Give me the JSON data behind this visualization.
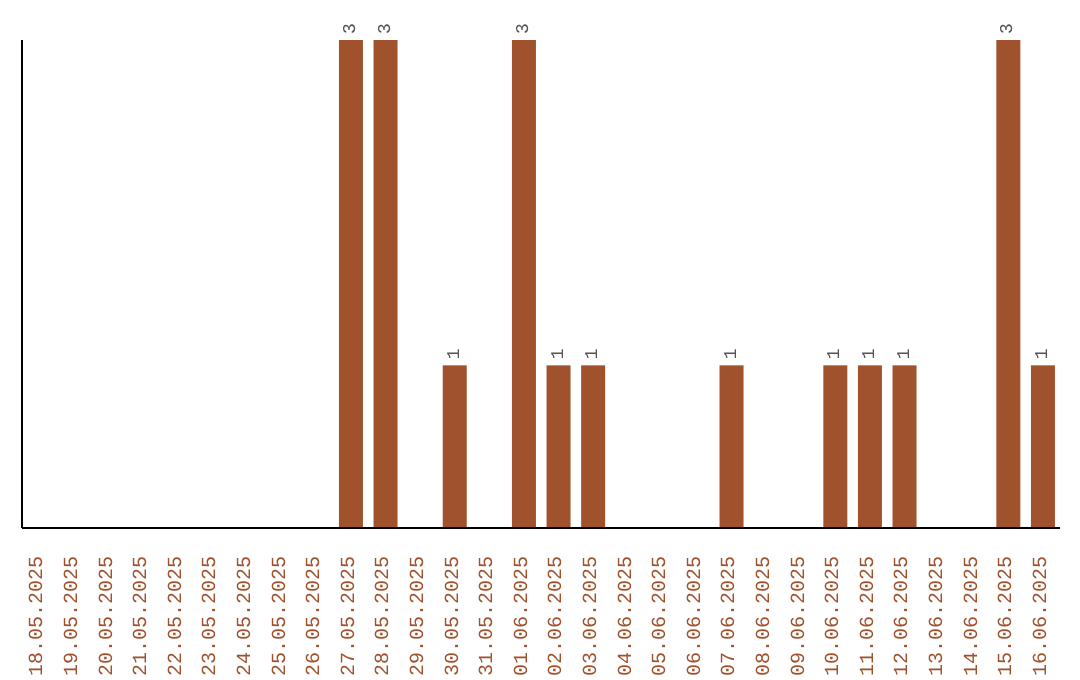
{
  "chart_data": {
    "type": "bar",
    "categories": [
      "18.05.2025",
      "19.05.2025",
      "20.05.2025",
      "21.05.2025",
      "22.05.2025",
      "23.05.2025",
      "24.05.2025",
      "25.05.2025",
      "26.05.2025",
      "27.05.2025",
      "28.05.2025",
      "29.05.2025",
      "30.05.2025",
      "31.05.2025",
      "01.06.2025",
      "02.06.2025",
      "03.06.2025",
      "04.06.2025",
      "05.06.2025",
      "06.06.2025",
      "07.06.2025",
      "08.06.2025",
      "09.06.2025",
      "10.06.2025",
      "11.06.2025",
      "12.06.2025",
      "13.06.2025",
      "14.06.2025",
      "15.06.2025",
      "16.06.2025"
    ],
    "values": [
      0,
      0,
      0,
      0,
      0,
      0,
      0,
      0,
      0,
      3,
      3,
      0,
      1,
      0,
      3,
      1,
      1,
      0,
      0,
      0,
      1,
      0,
      0,
      1,
      1,
      1,
      0,
      0,
      3,
      1
    ],
    "value_labels": [
      null,
      null,
      null,
      null,
      null,
      null,
      null,
      null,
      null,
      "3",
      "3",
      null,
      "1",
      null,
      "3",
      "1",
      "1",
      null,
      null,
      null,
      "1",
      null,
      null,
      "1",
      "1",
      "1",
      null,
      null,
      "3",
      "1"
    ],
    "color": "#a0522d",
    "ylim": [
      0,
      3
    ],
    "tick_labels": "x",
    "grid": false,
    "legend": false
  }
}
